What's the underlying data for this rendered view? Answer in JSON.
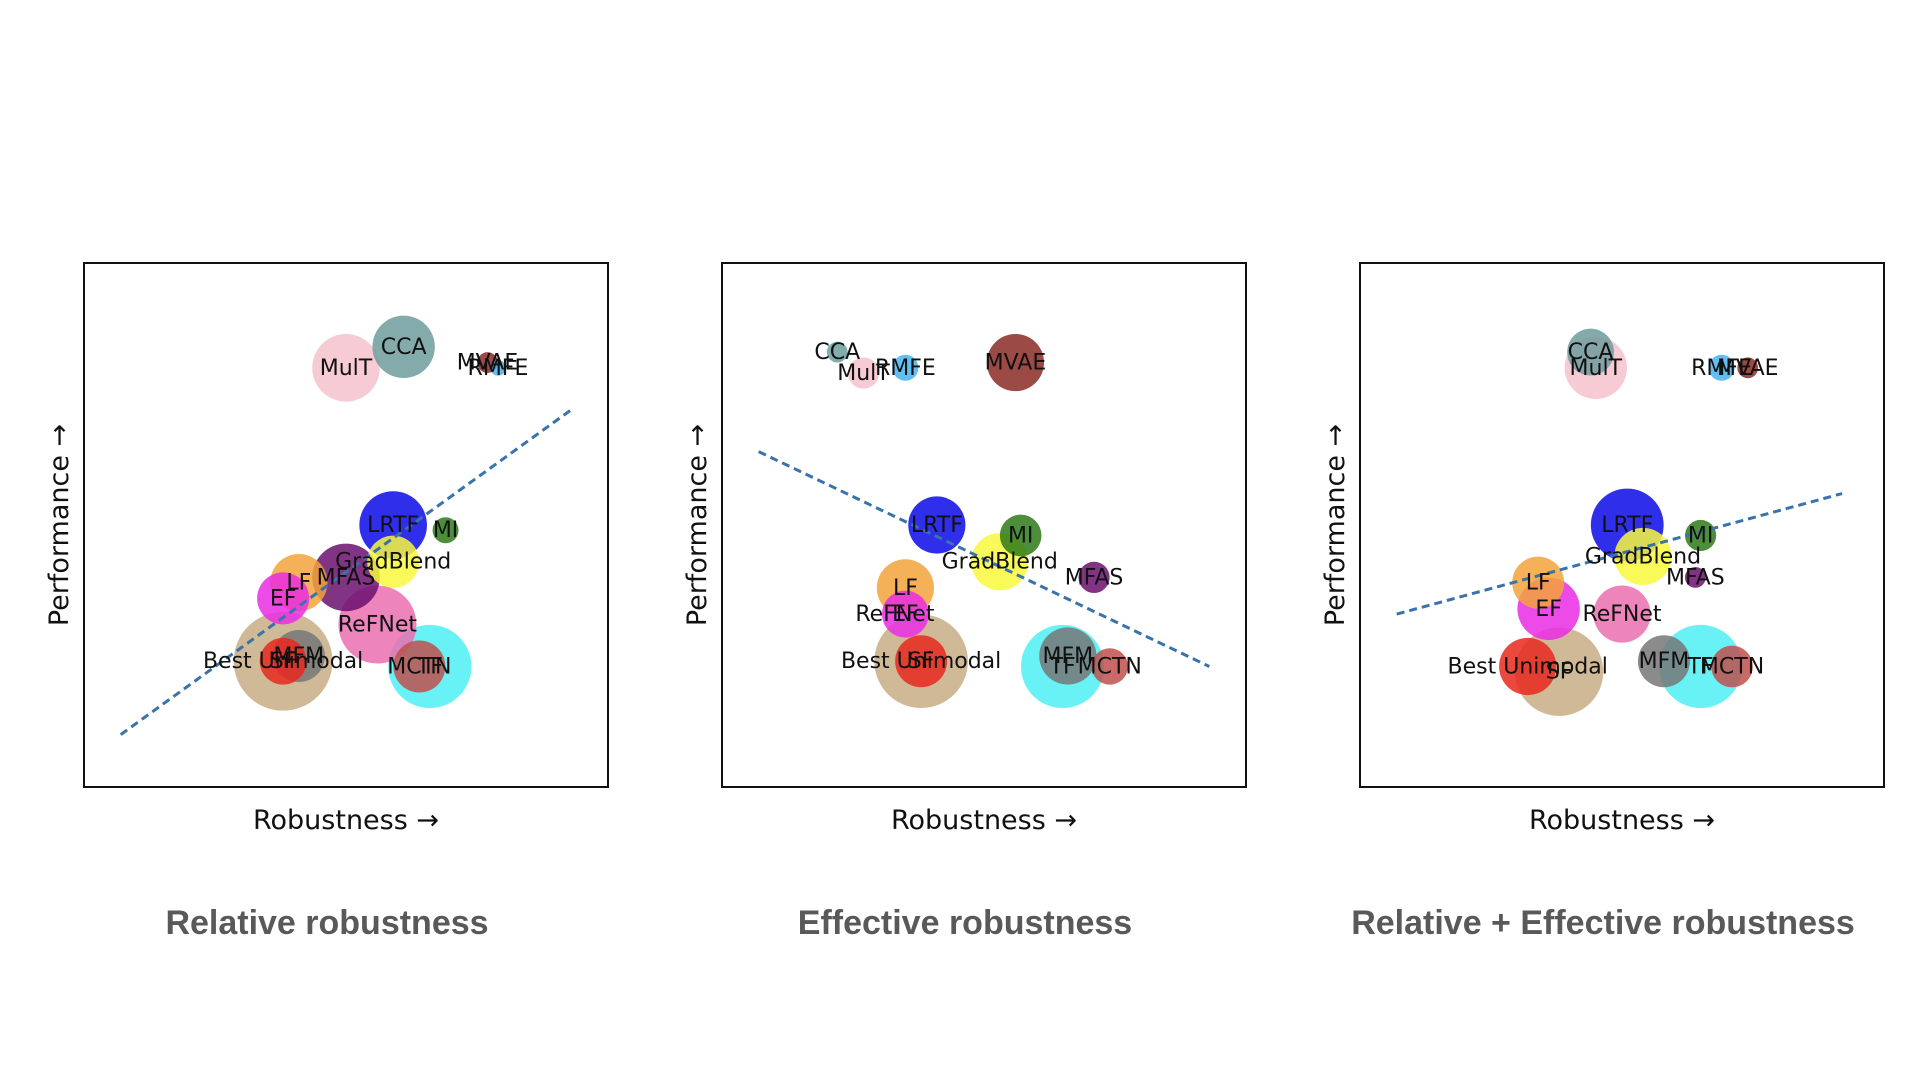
{
  "chart_data": [
    {
      "type": "scatter",
      "title": "Relative robustness",
      "xlabel": "Robustness →",
      "ylabel": "Performance →",
      "xlim": [
        0,
        100
      ],
      "ylim": [
        0,
        100
      ],
      "grid": false,
      "trendline": {
        "x": [
          7,
          93
        ],
        "y": [
          10,
          72
        ]
      },
      "points": [
        {
          "label": "Best Unimodal",
          "x": 38,
          "y": 24,
          "size": 9,
          "color": "#e8281e"
        },
        {
          "label": "SF",
          "x": 38,
          "y": 24,
          "size": 19,
          "color": "#c8ad85"
        },
        {
          "label": "MFM",
          "x": 41,
          "y": 25,
          "size": 10,
          "color": "#777777"
        },
        {
          "label": "MCTN",
          "x": 64,
          "y": 23,
          "size": 10,
          "color": "#c0504d"
        },
        {
          "label": "TF",
          "x": 66,
          "y": 23,
          "size": 16,
          "color": "#4ef0f4"
        },
        {
          "label": "ReFNet",
          "x": 56,
          "y": 31,
          "size": 15,
          "color": "#ea6fb0"
        },
        {
          "label": "EF",
          "x": 38,
          "y": 36,
          "size": 10,
          "color": "#ea2ce3"
        },
        {
          "label": "LF",
          "x": 41,
          "y": 39,
          "size": 11,
          "color": "#f2a33a"
        },
        {
          "label": "MFAS",
          "x": 50,
          "y": 40,
          "size": 13,
          "color": "#6b0f6f"
        },
        {
          "label": "GradBlend",
          "x": 59,
          "y": 43,
          "size": 10,
          "color": "#f8f83c"
        },
        {
          "label": "LRTF",
          "x": 59,
          "y": 50,
          "size": 13,
          "color": "#0a0ae8"
        },
        {
          "label": "MI",
          "x": 69,
          "y": 49,
          "size": 5,
          "color": "#2d7a18"
        },
        {
          "label": "MulT",
          "x": 50,
          "y": 80,
          "size": 13,
          "color": "#f5c2cb"
        },
        {
          "label": "CCA",
          "x": 61,
          "y": 84,
          "size": 12,
          "color": "#6e9c9d"
        },
        {
          "label": "MVAE",
          "x": 77,
          "y": 81,
          "size": 4,
          "color": "#8b2a25"
        },
        {
          "label": "RMFE",
          "x": 79,
          "y": 80,
          "size": 3,
          "color": "#48b4f0"
        }
      ]
    },
    {
      "type": "scatter",
      "title": "Effective robustness",
      "xlabel": "Robustness →",
      "ylabel": "Performance →",
      "xlim": [
        0,
        100
      ],
      "ylim": [
        0,
        100
      ],
      "grid": false,
      "trendline": {
        "x": [
          7,
          93
        ],
        "y": [
          64,
          23
        ]
      },
      "points": [
        {
          "label": "Best Unimodal",
          "x": 38,
          "y": 24,
          "size": 10,
          "color": "#e8281e"
        },
        {
          "label": "SF",
          "x": 38,
          "y": 24,
          "size": 18,
          "color": "#c8ad85"
        },
        {
          "label": "EF",
          "x": 35,
          "y": 33,
          "size": 9,
          "color": "#ea2ce3"
        },
        {
          "label": "ReFNet",
          "x": 33,
          "y": 33,
          "size": 0,
          "color": "#ea6fb0"
        },
        {
          "label": "LF",
          "x": 35,
          "y": 38,
          "size": 11,
          "color": "#f2a33a"
        },
        {
          "label": "LRTF",
          "x": 41,
          "y": 50,
          "size": 11,
          "color": "#0a0ae8"
        },
        {
          "label": "MI",
          "x": 57,
          "y": 48,
          "size": 8,
          "color": "#2d7a18"
        },
        {
          "label": "GradBlend",
          "x": 53,
          "y": 43,
          "size": 11,
          "color": "#f8f83c"
        },
        {
          "label": "MFAS",
          "x": 71,
          "y": 40,
          "size": 6,
          "color": "#6b0f6f"
        },
        {
          "label": "MFM",
          "x": 66,
          "y": 25,
          "size": 11,
          "color": "#777777"
        },
        {
          "label": "TF",
          "x": 65,
          "y": 23,
          "size": 16,
          "color": "#4ef0f4"
        },
        {
          "label": "MCTN",
          "x": 74,
          "y": 23,
          "size": 7,
          "color": "#c0504d"
        },
        {
          "label": "CCA",
          "x": 22,
          "y": 83,
          "size": 4,
          "color": "#6e9c9d"
        },
        {
          "label": "MulT",
          "x": 27,
          "y": 79,
          "size": 6,
          "color": "#f5c2cb"
        },
        {
          "label": "RMFE",
          "x": 35,
          "y": 80,
          "size": 5,
          "color": "#48b4f0"
        },
        {
          "label": "MVAE",
          "x": 56,
          "y": 81,
          "size": 11,
          "color": "#8b2a25"
        }
      ]
    },
    {
      "type": "scatter",
      "title": "Relative + Effective robustness",
      "xlabel": "Robustness →",
      "ylabel": "Performance →",
      "xlim": [
        0,
        100
      ],
      "ylim": [
        0,
        100
      ],
      "grid": false,
      "trendline": {
        "x": [
          7,
          92
        ],
        "y": [
          33,
          56
        ]
      },
      "points": [
        {
          "label": "Best Unimodal",
          "x": 32,
          "y": 23,
          "size": 11,
          "color": "#e8281e"
        },
        {
          "label": "SF",
          "x": 38,
          "y": 22,
          "size": 17,
          "color": "#c8ad85"
        },
        {
          "label": "EF",
          "x": 36,
          "y": 34,
          "size": 12,
          "color": "#ea2ce3"
        },
        {
          "label": "LF",
          "x": 34,
          "y": 39,
          "size": 10,
          "color": "#f2a33a"
        },
        {
          "label": "ReFNet",
          "x": 50,
          "y": 33,
          "size": 11,
          "color": "#ea6fb0"
        },
        {
          "label": "MFM",
          "x": 58,
          "y": 24,
          "size": 10,
          "color": "#777777"
        },
        {
          "label": "TF",
          "x": 65,
          "y": 23,
          "size": 16,
          "color": "#4ef0f4"
        },
        {
          "label": "MCTN",
          "x": 71,
          "y": 23,
          "size": 8,
          "color": "#c0504d"
        },
        {
          "label": "LRTF",
          "x": 51,
          "y": 50,
          "size": 14,
          "color": "#0a0ae8"
        },
        {
          "label": "GradBlend",
          "x": 54,
          "y": 44,
          "size": 11,
          "color": "#f8f83c"
        },
        {
          "label": "MI",
          "x": 65,
          "y": 48,
          "size": 6,
          "color": "#2d7a18"
        },
        {
          "label": "MFAS",
          "x": 64,
          "y": 40,
          "size": 4,
          "color": "#6b0f6f"
        },
        {
          "label": "MulT",
          "x": 45,
          "y": 80,
          "size": 12,
          "color": "#f5c2cb"
        },
        {
          "label": "CCA",
          "x": 44,
          "y": 83,
          "size": 9,
          "color": "#6e9c9d"
        },
        {
          "label": "RMFE",
          "x": 69,
          "y": 80,
          "size": 5,
          "color": "#48b4f0"
        },
        {
          "label": "MVAE",
          "x": 74,
          "y": 80,
          "size": 4,
          "color": "#8b2a25"
        }
      ]
    }
  ],
  "captions": [
    "Relative robustness",
    "Effective robustness",
    "Relative + Effective robustness"
  ],
  "colors": {
    "trendline": "#3a72aa",
    "frame": "#111111",
    "caption": "#595959"
  }
}
